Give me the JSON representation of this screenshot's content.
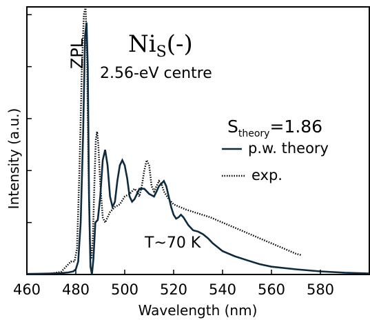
{
  "chart_data": {
    "type": "line",
    "xlabel": "Wavelength (nm)",
    "ylabel": "Intensity (a.u.)",
    "xlim": [
      460,
      600
    ],
    "ylim": [
      0,
      1.03
    ],
    "xticks": [
      460,
      480,
      500,
      520,
      540,
      560,
      580
    ],
    "grid": false,
    "legend_placement": "right",
    "title_main": "Ni",
    "title_sub": "S",
    "title_suffix": "(-)",
    "subtitle": "2.56-eV centre",
    "zpl_label": "ZPL",
    "s_main": "S",
    "s_sub": "theory",
    "s_suffix": "=1.86",
    "temperature_label": "T~70 K",
    "series": [
      {
        "name": "p.w. theory",
        "style": "solid",
        "color": "#0d2a3e",
        "x": [
          460,
          465,
          470,
          474,
          477,
          479,
          480,
          481,
          482,
          483,
          483.8,
          484.4,
          484.9,
          485.4,
          486,
          486.6,
          487.2,
          488,
          489,
          490,
          491,
          492,
          493,
          494,
          495,
          496,
          497,
          498,
          499,
          500,
          501,
          502,
          503,
          504,
          505,
          506,
          508,
          510,
          512,
          513,
          514,
          515,
          516,
          517,
          518,
          519,
          520,
          521,
          522,
          523,
          524,
          526,
          528,
          530,
          532,
          534,
          536,
          540,
          545,
          550,
          555,
          560,
          570,
          580,
          590,
          600
        ],
        "y": [
          0.002,
          0.003,
          0.004,
          0.005,
          0.008,
          0.012,
          0.02,
          0.05,
          0.2,
          0.55,
          0.92,
          0.97,
          0.8,
          0.3,
          0.03,
          0.0,
          0.06,
          0.2,
          0.21,
          0.3,
          0.44,
          0.48,
          0.42,
          0.3,
          0.26,
          0.28,
          0.36,
          0.42,
          0.44,
          0.42,
          0.37,
          0.3,
          0.28,
          0.29,
          0.31,
          0.33,
          0.33,
          0.31,
          0.3,
          0.32,
          0.34,
          0.35,
          0.36,
          0.34,
          0.3,
          0.26,
          0.23,
          0.215,
          0.22,
          0.23,
          0.22,
          0.19,
          0.17,
          0.165,
          0.155,
          0.14,
          0.12,
          0.09,
          0.07,
          0.055,
          0.04,
          0.03,
          0.02,
          0.012,
          0.007,
          0.004
        ]
      },
      {
        "name": "exp.",
        "style": "dotted",
        "color": "#000000",
        "x": [
          470,
          474,
          476,
          478,
          479.5,
          480.5,
          481.5,
          482.5,
          483.3,
          484,
          484.6,
          485.2,
          485.8,
          486.4,
          487,
          487.6,
          488.2,
          488.7,
          489.2,
          490,
          491,
          492,
          493,
          494,
          495,
          496,
          498,
          500,
          502,
          504,
          505,
          506,
          507,
          508,
          509,
          510,
          510.5,
          511,
          512,
          513,
          514,
          515,
          516,
          518,
          520,
          525,
          530,
          535,
          540,
          545,
          550,
          555,
          560,
          565,
          570,
          572
        ],
        "y": [
          0.004,
          0.01,
          0.03,
          0.05,
          0.05,
          0.1,
          0.4,
          0.8,
          1.0,
          1.03,
          0.85,
          0.4,
          0.12,
          0.06,
          0.15,
          0.35,
          0.52,
          0.55,
          0.5,
          0.35,
          0.22,
          0.2,
          0.22,
          0.24,
          0.25,
          0.26,
          0.27,
          0.3,
          0.31,
          0.33,
          0.32,
          0.3,
          0.34,
          0.4,
          0.44,
          0.42,
          0.38,
          0.34,
          0.32,
          0.34,
          0.36,
          0.35,
          0.32,
          0.29,
          0.27,
          0.25,
          0.235,
          0.22,
          0.2,
          0.18,
          0.16,
          0.14,
          0.12,
          0.1,
          0.08,
          0.075
        ]
      }
    ]
  }
}
